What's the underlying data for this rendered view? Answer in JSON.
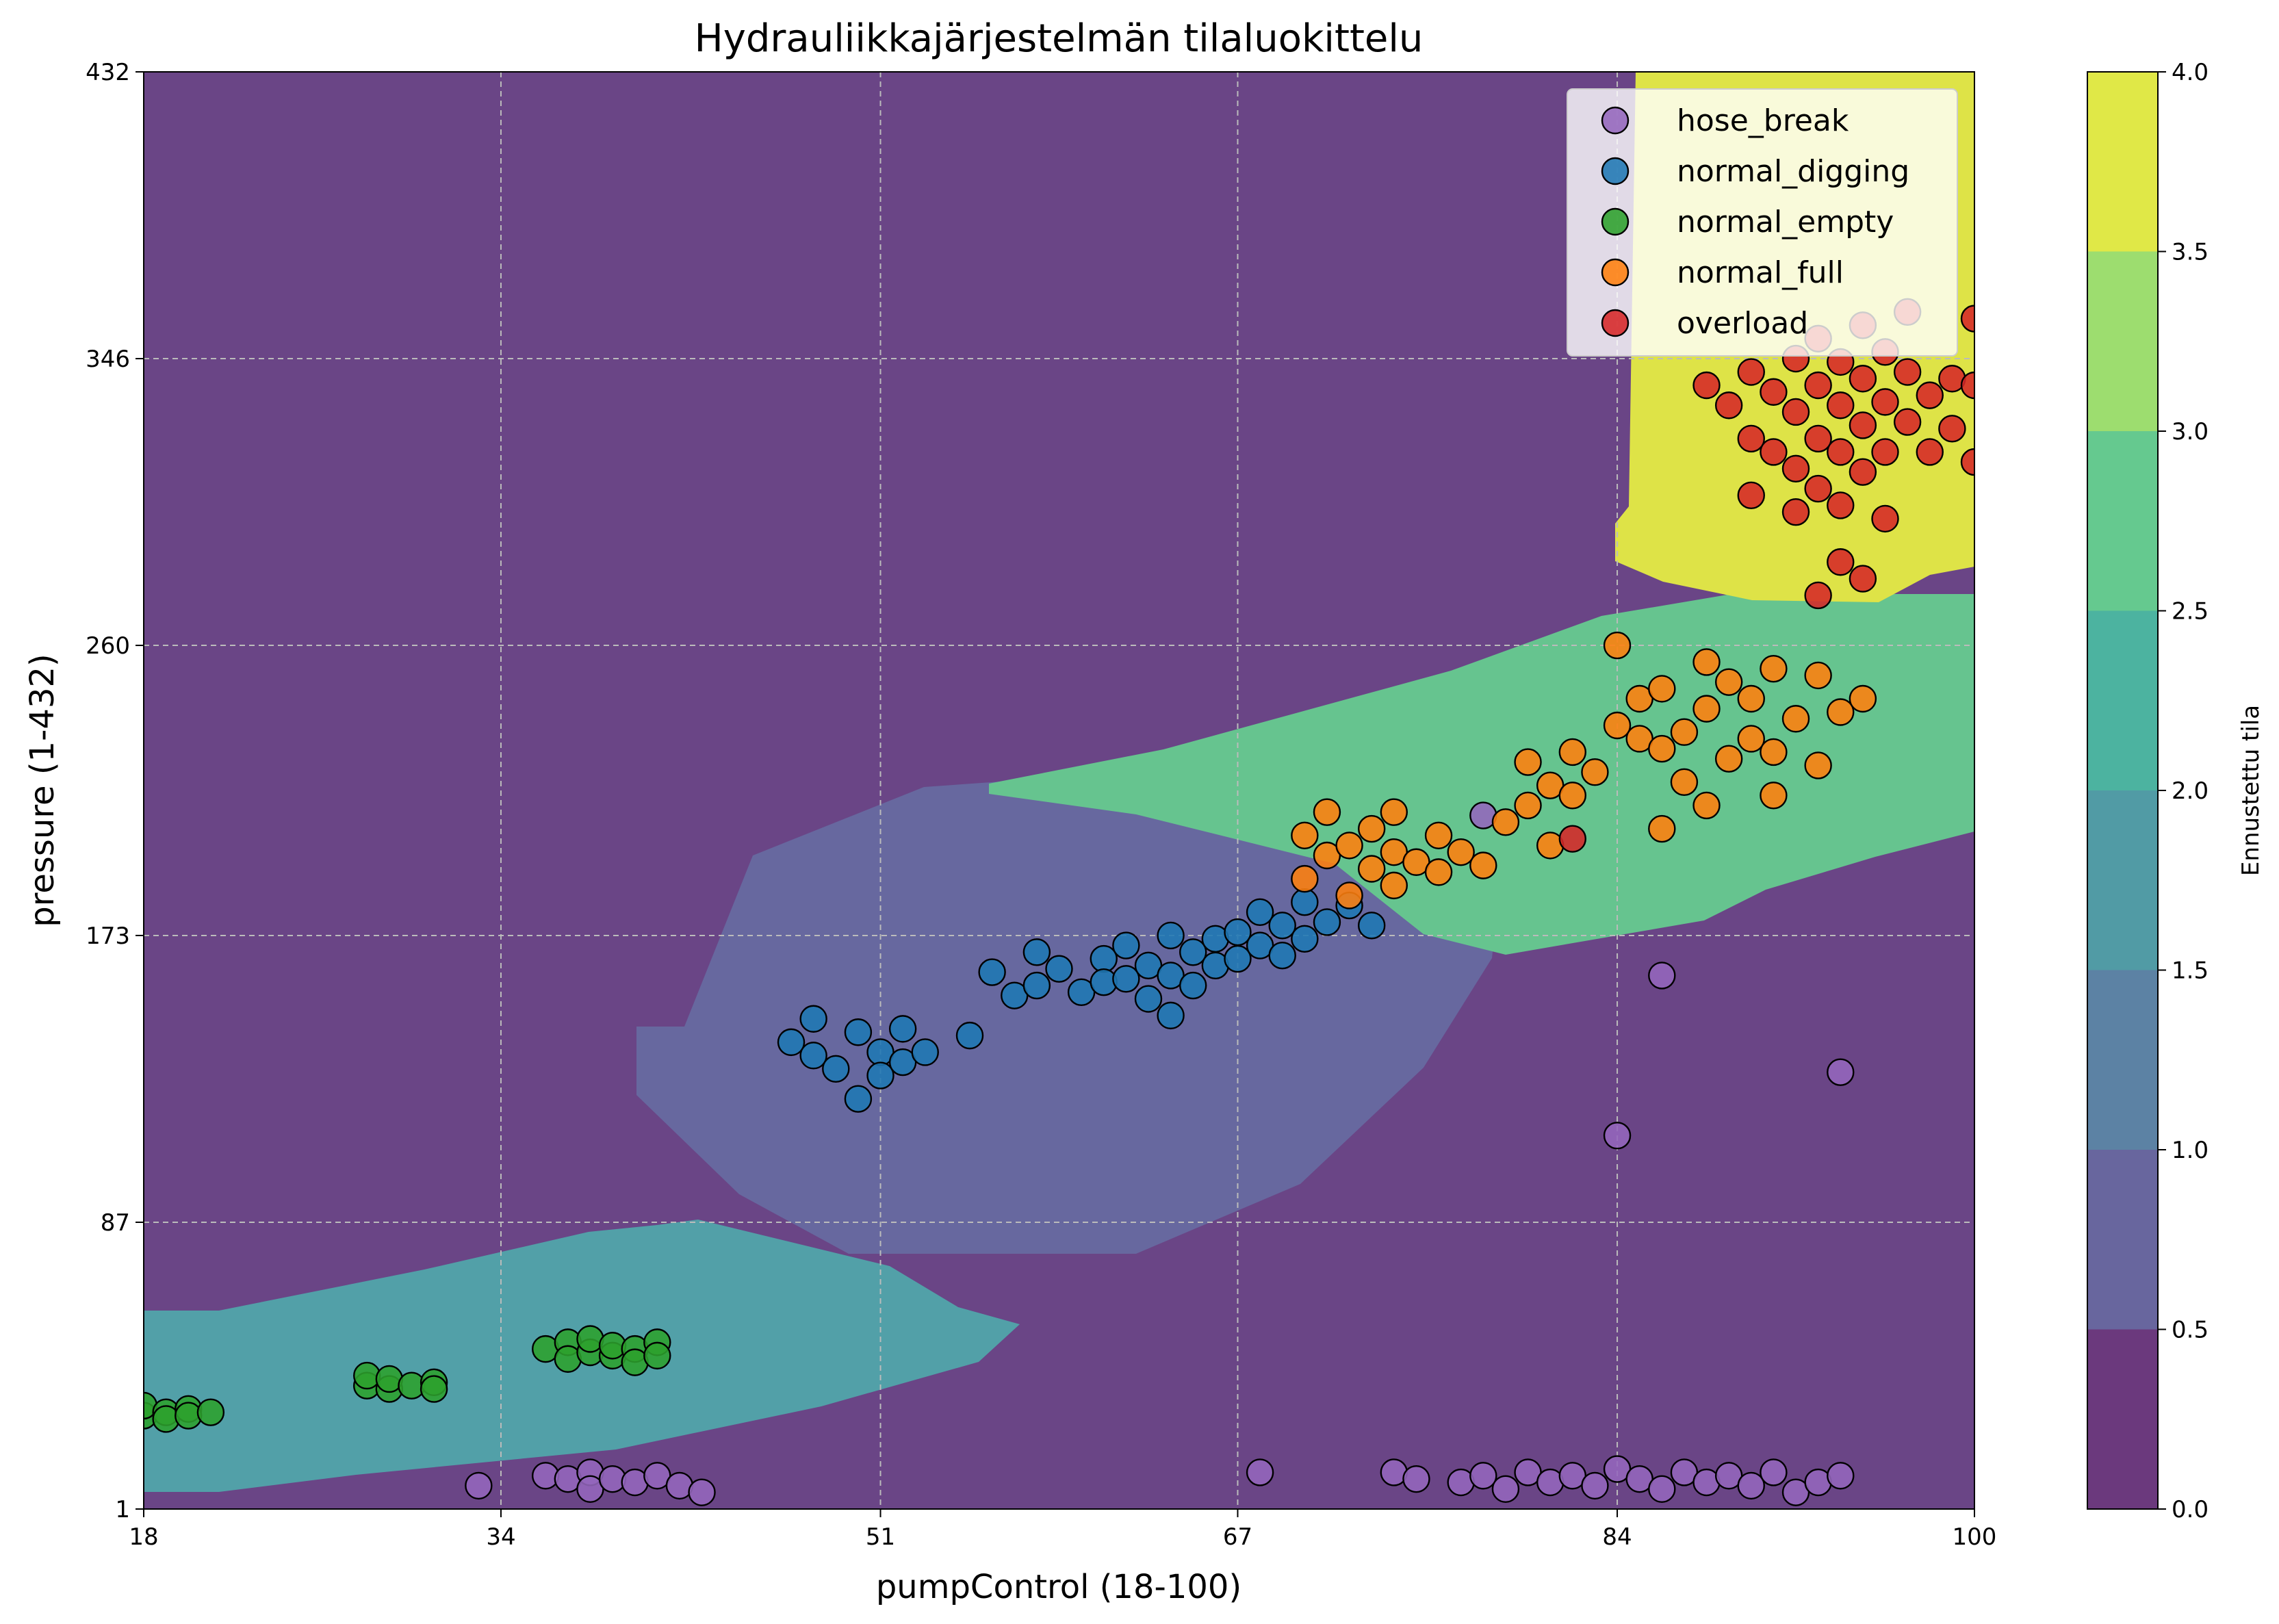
{
  "chart_data": {
    "type": "scatter",
    "title": "Hydrauliikkajärjestelmän tilaluokittelu",
    "xlabel": "pumpControl (18-100)",
    "ylabel": "pressure (1-432)",
    "xlim": [
      18,
      100
    ],
    "ylim": [
      1,
      432
    ],
    "xticks": [
      "18",
      "34",
      "51",
      "67",
      "84",
      "100"
    ],
    "yticks": [
      "1",
      "87",
      "173",
      "260",
      "346",
      "432"
    ],
    "grid": true,
    "legend_position": "top-right",
    "background": "decision-region contour (predicted class)",
    "colorbar": {
      "label": "Ennustettu tila",
      "range": [
        0.0,
        4.0
      ],
      "ticks": [
        "0.0",
        "0.5",
        "1.0",
        "1.5",
        "2.0",
        "2.5",
        "3.0",
        "3.5",
        "4.0"
      ],
      "colors": [
        "#46085c",
        "#424086",
        "#33638d",
        "#26828e",
        "#1fa088",
        "#3fbc73",
        "#84d44b",
        "#d8e219"
      ]
    },
    "series": [
      {
        "name": "hose_break",
        "color": "#9467bd",
        "points": [
          [
            33,
            8
          ],
          [
            36,
            11
          ],
          [
            37,
            10
          ],
          [
            38,
            12
          ],
          [
            38,
            7
          ],
          [
            39,
            10
          ],
          [
            40,
            9
          ],
          [
            41,
            11
          ],
          [
            42,
            8
          ],
          [
            43,
            6
          ],
          [
            68,
            12
          ],
          [
            74,
            12
          ],
          [
            75,
            10
          ],
          [
            77,
            9
          ],
          [
            78,
            11
          ],
          [
            79,
            7
          ],
          [
            80,
            12
          ],
          [
            81,
            9
          ],
          [
            82,
            11
          ],
          [
            83,
            8
          ],
          [
            84,
            13
          ],
          [
            85,
            10
          ],
          [
            86,
            7
          ],
          [
            87,
            12
          ],
          [
            88,
            9
          ],
          [
            89,
            11
          ],
          [
            90,
            8
          ],
          [
            91,
            12
          ],
          [
            92,
            6
          ],
          [
            93,
            9
          ],
          [
            94,
            11
          ],
          [
            78,
            209
          ],
          [
            84,
            113
          ],
          [
            86,
            161
          ],
          [
            94,
            132
          ]
        ]
      },
      {
        "name": "normal_digging",
        "color": "#1f77b4",
        "points": [
          [
            47,
            141
          ],
          [
            48,
            148
          ],
          [
            48,
            137
          ],
          [
            49,
            133
          ],
          [
            50,
            144
          ],
          [
            51,
            138
          ],
          [
            51,
            131
          ],
          [
            50,
            124
          ],
          [
            52,
            145
          ],
          [
            52,
            135
          ],
          [
            53,
            138
          ],
          [
            55,
            143
          ],
          [
            56,
            162
          ],
          [
            57,
            155
          ],
          [
            58,
            168
          ],
          [
            58,
            158
          ],
          [
            59,
            163
          ],
          [
            60,
            156
          ],
          [
            61,
            166
          ],
          [
            61,
            159
          ],
          [
            62,
            170
          ],
          [
            62,
            160
          ],
          [
            63,
            164
          ],
          [
            63,
            154
          ],
          [
            64,
            173
          ],
          [
            64,
            161
          ],
          [
            65,
            168
          ],
          [
            65,
            158
          ],
          [
            66,
            172
          ],
          [
            66,
            164
          ],
          [
            67,
            174
          ],
          [
            67,
            166
          ],
          [
            68,
            180
          ],
          [
            68,
            170
          ],
          [
            69,
            176
          ],
          [
            69,
            167
          ],
          [
            70,
            183
          ],
          [
            70,
            172
          ],
          [
            71,
            177
          ],
          [
            72,
            182
          ],
          [
            73,
            176
          ],
          [
            64,
            149
          ]
        ]
      },
      {
        "name": "normal_empty",
        "color": "#2ca02c",
        "points": [
          [
            18,
            29
          ],
          [
            18,
            32
          ],
          [
            19,
            30
          ],
          [
            19,
            28
          ],
          [
            20,
            31
          ],
          [
            20,
            29
          ],
          [
            21,
            30
          ],
          [
            28,
            38
          ],
          [
            28,
            41
          ],
          [
            29,
            37
          ],
          [
            29,
            40
          ],
          [
            30,
            38
          ],
          [
            31,
            39
          ],
          [
            31,
            37
          ],
          [
            36,
            49
          ],
          [
            37,
            51
          ],
          [
            37,
            46
          ],
          [
            38,
            48
          ],
          [
            38,
            52
          ],
          [
            39,
            47
          ],
          [
            39,
            50
          ],
          [
            40,
            49
          ],
          [
            40,
            45
          ],
          [
            41,
            51
          ],
          [
            41,
            47
          ]
        ]
      },
      {
        "name": "normal_full",
        "color": "#ff7f0e",
        "points": [
          [
            70,
            190
          ],
          [
            70,
            203
          ],
          [
            71,
            197
          ],
          [
            71,
            210
          ],
          [
            72,
            185
          ],
          [
            72,
            200
          ],
          [
            73,
            193
          ],
          [
            73,
            205
          ],
          [
            74,
            188
          ],
          [
            74,
            198
          ],
          [
            74,
            210
          ],
          [
            75,
            195
          ],
          [
            76,
            192
          ],
          [
            76,
            203
          ],
          [
            77,
            198
          ],
          [
            78,
            194
          ],
          [
            79,
            207
          ],
          [
            80,
            212
          ],
          [
            80,
            225
          ],
          [
            81,
            200
          ],
          [
            81,
            218
          ],
          [
            82,
            215
          ],
          [
            82,
            228
          ],
          [
            83,
            222
          ],
          [
            84,
            236
          ],
          [
            84,
            260
          ],
          [
            85,
            232
          ],
          [
            85,
            244
          ],
          [
            86,
            205
          ],
          [
            86,
            229
          ],
          [
            86,
            247
          ],
          [
            87,
            219
          ],
          [
            87,
            234
          ],
          [
            88,
            212
          ],
          [
            88,
            241
          ],
          [
            88,
            255
          ],
          [
            89,
            226
          ],
          [
            89,
            249
          ],
          [
            90,
            232
          ],
          [
            90,
            244
          ],
          [
            91,
            215
          ],
          [
            91,
            228
          ],
          [
            91,
            253
          ],
          [
            92,
            238
          ],
          [
            93,
            224
          ],
          [
            93,
            251
          ],
          [
            94,
            240
          ],
          [
            95,
            244
          ]
        ]
      },
      {
        "name": "overload",
        "color": "#d62728",
        "points": [
          [
            82,
            202
          ],
          [
            88,
            338
          ],
          [
            89,
            332
          ],
          [
            90,
            342
          ],
          [
            90,
            322
          ],
          [
            90,
            305
          ],
          [
            91,
            336
          ],
          [
            91,
            318
          ],
          [
            92,
            346
          ],
          [
            92,
            330
          ],
          [
            92,
            313
          ],
          [
            92,
            300
          ],
          [
            93,
            352
          ],
          [
            93,
            338
          ],
          [
            93,
            322
          ],
          [
            93,
            307
          ],
          [
            94,
            345
          ],
          [
            94,
            332
          ],
          [
            94,
            318
          ],
          [
            94,
            302
          ],
          [
            94,
            285
          ],
          [
            95,
            356
          ],
          [
            95,
            340
          ],
          [
            95,
            326
          ],
          [
            95,
            312
          ],
          [
            96,
            348
          ],
          [
            96,
            333
          ],
          [
            96,
            318
          ],
          [
            96,
            298
          ],
          [
            97,
            342
          ],
          [
            97,
            327
          ],
          [
            97,
            360
          ],
          [
            98,
            335
          ],
          [
            98,
            318
          ],
          [
            99,
            340
          ],
          [
            99,
            325
          ],
          [
            100,
            358
          ],
          [
            100,
            338
          ],
          [
            100,
            315
          ],
          [
            93,
            275
          ],
          [
            95,
            280
          ]
        ]
      }
    ]
  }
}
